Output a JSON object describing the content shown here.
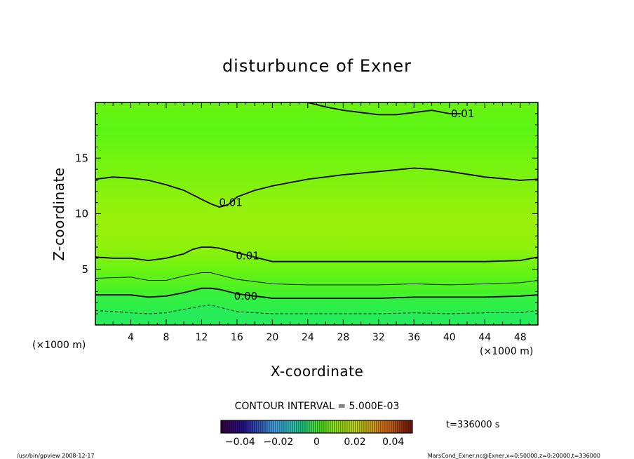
{
  "chart_data": {
    "type": "contour",
    "title": "disturbunce of Exner",
    "xlabel": "X-coordinate",
    "ylabel": "Z-coordinate",
    "x_units": "(×1000 m)",
    "y_units": "(×1000 m)",
    "xlim": [
      0,
      50
    ],
    "ylim": [
      0,
      20
    ],
    "x_ticks": [
      4,
      8,
      12,
      16,
      20,
      24,
      28,
      32,
      36,
      40,
      44,
      48
    ],
    "y_ticks": [
      5,
      10,
      15
    ],
    "contour_interval_text": "CONTOUR INTERVAL = 5.000E-03",
    "time_label": "t=336000 s",
    "colorbar_ticks": [
      "−0.04",
      "−0.02",
      "0",
      "0.02",
      "0.04"
    ],
    "colorbar_range": [
      -0.05,
      0.05
    ],
    "contour_labels": [
      {
        "text": "0.01",
        "x": 41.5,
        "y": 19.0
      },
      {
        "text": "0.01",
        "x": 15.3,
        "y": 11.0
      },
      {
        "text": "0.01",
        "x": 17.2,
        "y": 6.2
      },
      {
        "text": "0.00",
        "x": 17.0,
        "y": 2.6
      }
    ],
    "contours": [
      {
        "level": "0.015",
        "style": "solid",
        "bold": true,
        "x": [
          24,
          26,
          28,
          30,
          32,
          34,
          36,
          38,
          40,
          41.3
        ],
        "y": [
          20.0,
          19.6,
          19.3,
          19.1,
          18.9,
          18.9,
          19.1,
          19.3,
          19.0,
          19.0
        ]
      },
      {
        "level": "0.01",
        "style": "solid",
        "bold": true,
        "x": [
          0,
          2,
          4,
          6,
          8,
          10,
          12,
          13,
          14,
          15,
          16,
          18,
          20,
          24,
          28,
          32,
          36,
          38,
          40,
          44,
          48,
          50
        ],
        "y": [
          13.1,
          13.3,
          13.2,
          13.0,
          12.6,
          12.1,
          11.3,
          10.9,
          10.6,
          10.8,
          11.5,
          12.1,
          12.5,
          13.1,
          13.5,
          13.8,
          14.1,
          14.0,
          13.8,
          13.3,
          13.0,
          13.1
        ]
      },
      {
        "level": "0.01",
        "style": "solid",
        "bold": true,
        "x": [
          0,
          2,
          4,
          6,
          8,
          10,
          11,
          12,
          13,
          14,
          15,
          16,
          20,
          24,
          28,
          32,
          36,
          40,
          44,
          48,
          50
        ],
        "y": [
          6.1,
          6.0,
          6.0,
          5.8,
          6.0,
          6.4,
          6.8,
          7.0,
          7.0,
          6.9,
          6.7,
          6.5,
          5.7,
          5.7,
          5.7,
          5.7,
          5.7,
          5.7,
          5.7,
          5.8,
          6.1
        ]
      },
      {
        "level": "0.005",
        "style": "solid",
        "bold": false,
        "x": [
          0,
          4,
          6,
          8,
          10,
          12,
          13,
          14,
          16,
          20,
          24,
          28,
          32,
          36,
          40,
          44,
          48,
          50
        ],
        "y": [
          4.2,
          4.3,
          4.0,
          4.0,
          4.4,
          4.7,
          4.7,
          4.5,
          4.1,
          3.7,
          3.6,
          3.6,
          3.6,
          3.7,
          3.6,
          3.7,
          3.8,
          4.0
        ]
      },
      {
        "level": "0.00",
        "style": "solid",
        "bold": true,
        "x": [
          0,
          4,
          6,
          8,
          10,
          12,
          13,
          14,
          16,
          20,
          24,
          28,
          32,
          36,
          40,
          44,
          48,
          50
        ],
        "y": [
          2.7,
          2.7,
          2.5,
          2.6,
          2.9,
          3.3,
          3.3,
          3.2,
          2.8,
          2.4,
          2.4,
          2.4,
          2.4,
          2.5,
          2.5,
          2.5,
          2.6,
          2.7
        ]
      },
      {
        "level": "-0.005",
        "style": "dashed",
        "bold": false,
        "x": [
          0,
          4,
          6,
          8,
          10,
          12,
          13,
          14,
          16,
          20,
          24,
          28,
          32,
          36,
          40,
          44,
          48,
          50
        ],
        "y": [
          1.3,
          1.1,
          1.0,
          1.1,
          1.4,
          1.7,
          1.8,
          1.6,
          1.2,
          1.0,
          1.0,
          1.0,
          1.0,
          1.1,
          1.0,
          1.1,
          1.1,
          1.3
        ]
      }
    ],
    "fill_colors": [
      "#1fe86a",
      "#2bee4f",
      "#43f22c",
      "#5cf516",
      "#7af40f",
      "#9af00a"
    ]
  },
  "footer": {
    "left": "/usr/bin/gpview  2008-12-17",
    "right": "MarsCond_Exner.nc@Exner,x=0:50000,z=0:20000,t=336000"
  }
}
